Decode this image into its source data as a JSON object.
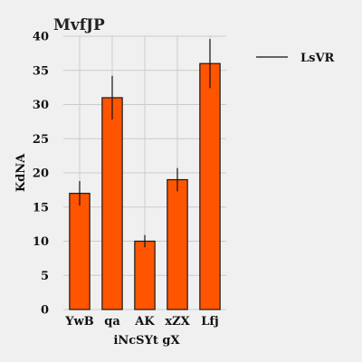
{
  "chart_data": {
    "type": "bar",
    "title": "MvfJP",
    "xlabel": "iNcSYt gX",
    "ylabel": "KdNA",
    "categories": [
      "YwB",
      "qa",
      "AK",
      "xZX",
      "Lfj"
    ],
    "series": [
      {
        "name": "LsVR",
        "values": [
          17,
          31,
          10,
          19,
          36
        ],
        "errors": [
          1.8,
          3.2,
          0.9,
          1.7,
          3.6
        ]
      }
    ],
    "ylim": [
      0,
      40
    ],
    "yticks": [
      0,
      5,
      10,
      15,
      20,
      25,
      30,
      35,
      40
    ],
    "grid": true,
    "legend_position": "top-right",
    "colors": {
      "bar": "#ff5500",
      "bar_edge": "#1a1a1a",
      "error": "#111111",
      "grid": "#cbcbcb",
      "background": "#f0f0f0"
    }
  }
}
